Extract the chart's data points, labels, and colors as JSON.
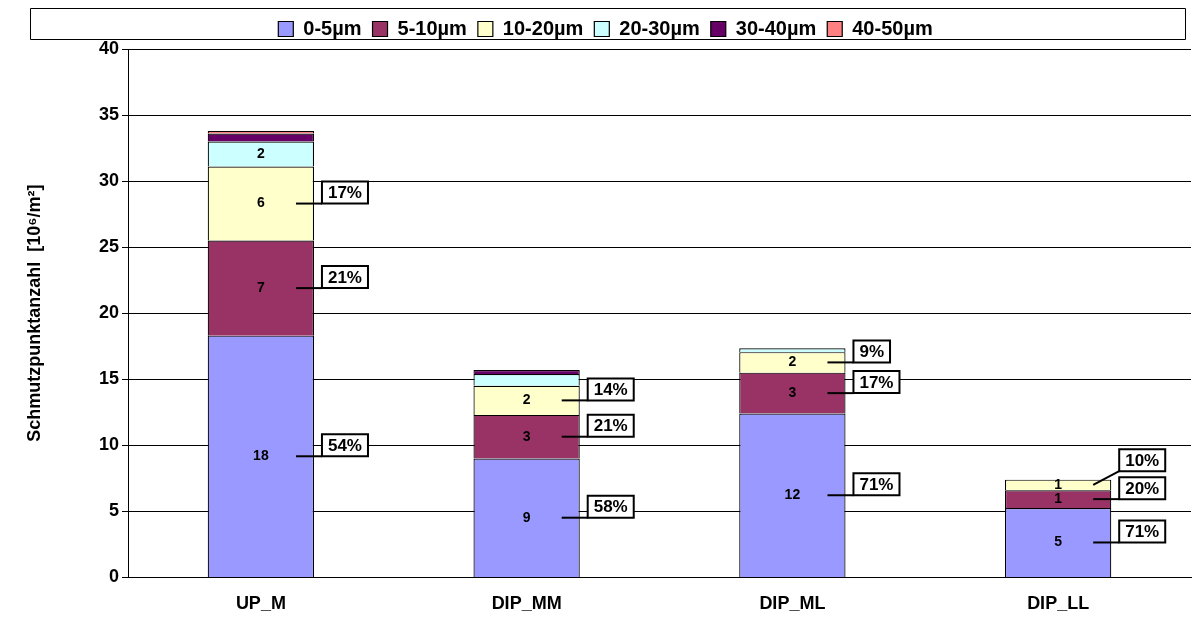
{
  "chart_data": {
    "type": "bar",
    "stacked": true,
    "ylabel": "Schmutzpunktanzahl  [10⁶/m²]",
    "categories": [
      "UP_M",
      "DIP_MM",
      "DIP_ML",
      "DIP_LL"
    ],
    "series": [
      {
        "name": "0-5µm",
        "color": "#9999ff",
        "values": [
          18.3,
          9.0,
          12.4,
          5.25
        ],
        "value_labels": [
          "18",
          "9",
          "12",
          "5"
        ]
      },
      {
        "name": "5-10µm",
        "color": "#993366",
        "values": [
          7.2,
          3.3,
          3.1,
          1.35
        ],
        "value_labels": [
          "7",
          "3",
          "3",
          "1"
        ]
      },
      {
        "name": "10-20µm",
        "color": "#ffffcc",
        "values": [
          5.6,
          2.2,
          1.55,
          0.8
        ],
        "value_labels": [
          "6",
          "2",
          "2",
          "1"
        ]
      },
      {
        "name": "20-30µm",
        "color": "#ccffff",
        "values": [
          1.9,
          0.9,
          0.3,
          null
        ],
        "value_labels": [
          "2",
          null,
          null,
          null
        ]
      },
      {
        "name": "30-40µm",
        "color": "#660066",
        "values": [
          0.6,
          0.3,
          null,
          null
        ],
        "value_labels": [
          null,
          null,
          null,
          null
        ]
      },
      {
        "name": "40-50µm",
        "color": "#ff8080",
        "values": [
          0.2,
          null,
          null,
          null
        ],
        "value_labels": [
          null,
          null,
          null,
          null
        ]
      }
    ],
    "ylim": [
      0,
      40
    ],
    "yticks": [
      0,
      5,
      10,
      15,
      20,
      25,
      30,
      35,
      40
    ],
    "grid": "y",
    "legend": "top",
    "annotations": [
      "54%",
      "21%",
      "17%",
      "58%",
      "21%",
      "14%",
      "71%",
      "17%",
      "9%",
      "71%",
      "20%",
      "10%"
    ]
  }
}
